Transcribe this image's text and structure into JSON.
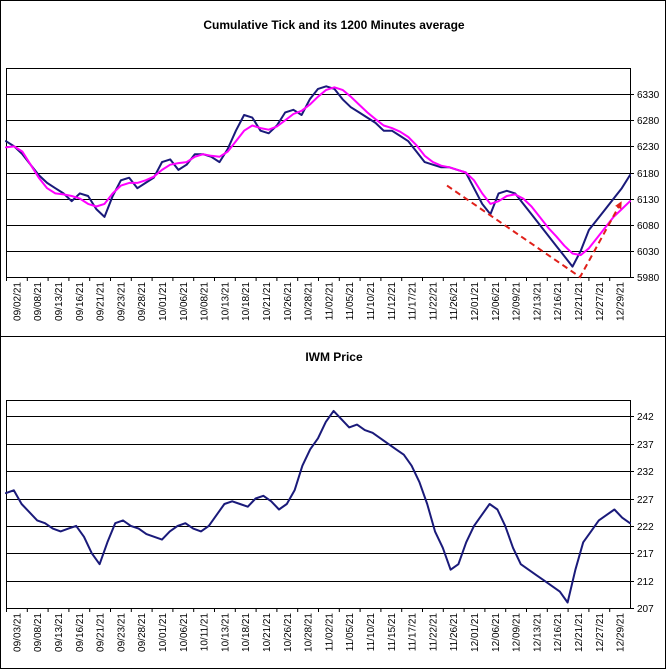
{
  "colors": {
    "series_main": "#1a1a7a",
    "series_avg": "#ff00ff",
    "trend": "#e0201a",
    "grid": "#000000",
    "frame": "#000000"
  },
  "chart_data": [
    {
      "type": "line",
      "title": "Cumulative Tick and its 1200 Minutes average",
      "xlabel": "",
      "ylabel": "",
      "ylim": [
        5980,
        6380
      ],
      "yticks": [
        5980,
        6030,
        6080,
        6130,
        6180,
        6230,
        6280,
        6330
      ],
      "grid": "horizontal",
      "legend": "none",
      "x_tick_labels": [
        "09/02/21",
        "09/08/21",
        "09/13/21",
        "09/16/21",
        "09/21/21",
        "09/23/21",
        "09/28/21",
        "10/01/21",
        "10/06/21",
        "10/08/21",
        "10/13/21",
        "10/18/21",
        "10/21/21",
        "10/26/21",
        "10/28/21",
        "11/02/21",
        "11/05/21",
        "11/10/21",
        "11/12/21",
        "11/17/21",
        "11/22/21",
        "11/26/21",
        "12/01/21",
        "12/06/21",
        "12/09/21",
        "12/13/21",
        "12/16/21",
        "12/21/21",
        "12/27/21",
        "12/29/21"
      ],
      "series": [
        {
          "role": "main",
          "values": [
            6240,
            6230,
            6215,
            6195,
            6175,
            6160,
            6150,
            6140,
            6125,
            6140,
            6135,
            6110,
            6095,
            6135,
            6165,
            6170,
            6150,
            6160,
            6170,
            6200,
            6205,
            6185,
            6195,
            6215,
            6215,
            6210,
            6200,
            6225,
            6260,
            6290,
            6285,
            6260,
            6255,
            6270,
            6295,
            6300,
            6290,
            6320,
            6340,
            6345,
            6340,
            6320,
            6305,
            6295,
            6285,
            6275,
            6260,
            6260,
            6250,
            6240,
            6220,
            6200,
            6195,
            6190,
            6190,
            6185,
            6180,
            6150,
            6120,
            6100,
            6140,
            6145,
            6140,
            6120,
            6100,
            6080,
            6060,
            6040,
            6020,
            6000,
            6030,
            6070,
            6090,
            6110,
            6130,
            6150,
            6175
          ]
        },
        {
          "role": "average",
          "values": [
            6228,
            6230,
            6220,
            6195,
            6170,
            6150,
            6140,
            6138,
            6135,
            6130,
            6120,
            6115,
            6120,
            6140,
            6155,
            6160,
            6160,
            6165,
            6172,
            6185,
            6195,
            6198,
            6200,
            6210,
            6215,
            6212,
            6210,
            6220,
            6240,
            6260,
            6270,
            6265,
            6262,
            6268,
            6280,
            6292,
            6298,
            6310,
            6325,
            6338,
            6343,
            6338,
            6325,
            6310,
            6295,
            6282,
            6270,
            6265,
            6258,
            6248,
            6232,
            6212,
            6200,
            6193,
            6190,
            6185,
            6180,
            6165,
            6140,
            6120,
            6125,
            6135,
            6138,
            6130,
            6115,
            6095,
            6075,
            6058,
            6040,
            6025,
            6022,
            6035,
            6055,
            6075,
            6095,
            6110,
            6125
          ]
        }
      ],
      "trend_lines": [
        [
          [
            21.2,
            6155
          ],
          [
            27.6,
            5980
          ],
          [
            29.6,
            6125
          ]
        ]
      ]
    },
    {
      "type": "line",
      "title": "IWM Price",
      "xlabel": "",
      "ylabel": "",
      "ylim": [
        207,
        245
      ],
      "yticks": [
        207,
        212,
        217,
        222,
        227,
        232,
        237,
        242
      ],
      "grid": "horizontal",
      "legend": "none",
      "x_tick_labels": [
        "09/03/21",
        "09/08/21",
        "09/13/21",
        "09/16/21",
        "09/21/21",
        "09/23/21",
        "09/28/21",
        "10/01/21",
        "10/06/21",
        "10/11/21",
        "10/13/21",
        "10/18/21",
        "10/21/21",
        "10/26/21",
        "10/28/21",
        "11/02/21",
        "11/05/21",
        "11/10/21",
        "11/15/21",
        "11/17/21",
        "11/22/21",
        "11/26/21",
        "12/01/21",
        "12/06/21",
        "12/09/21",
        "12/13/21",
        "12/16/21",
        "12/21/21",
        "12/27/21",
        "12/29/21"
      ],
      "series": [
        {
          "role": "main",
          "values": [
            228,
            228.5,
            226,
            224.5,
            223,
            222.5,
            221.5,
            221,
            221.5,
            222,
            220,
            217,
            215,
            219,
            222.5,
            223,
            222,
            221.5,
            220.5,
            220,
            219.5,
            221,
            222,
            222.5,
            221.5,
            221,
            222,
            224,
            226,
            226.5,
            226,
            225.5,
            227,
            227.5,
            226.5,
            225,
            226,
            228.5,
            233,
            236,
            238,
            241,
            243,
            241.5,
            240,
            240.5,
            239.5,
            239,
            238,
            237,
            236,
            235,
            233,
            230,
            226,
            221,
            218,
            214,
            215,
            219,
            222,
            224,
            226,
            225,
            222,
            218,
            215,
            214,
            213,
            212,
            211,
            210,
            208,
            214,
            219,
            221,
            223,
            224,
            225,
            223.5,
            222.5
          ]
        }
      ],
      "trend_lines": []
    }
  ]
}
